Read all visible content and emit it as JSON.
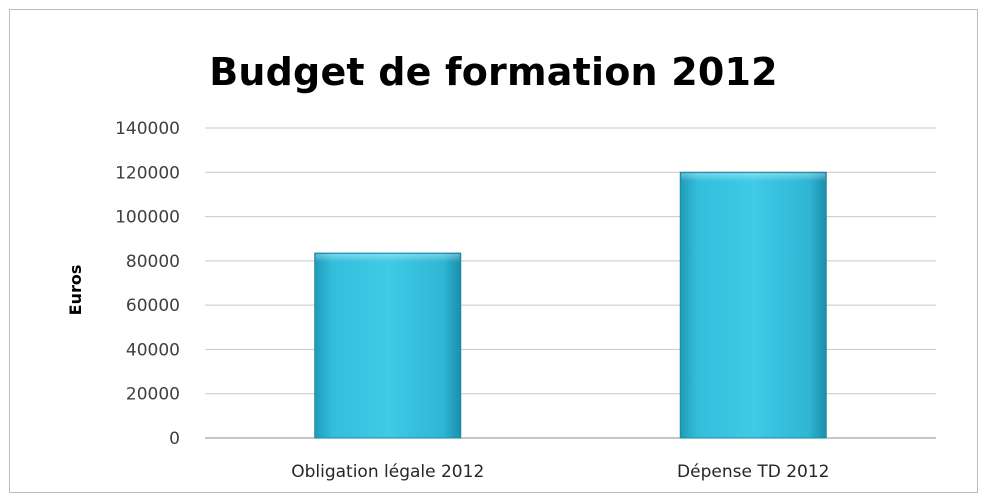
{
  "chart_data": {
    "type": "bar",
    "title": "Budget de formation 2012",
    "xlabel": "",
    "ylabel": "Euros",
    "categories": [
      "Obligation légale 2012",
      "Dépense TD 2012"
    ],
    "values": [
      83500,
      120000
    ],
    "ylim": [
      0,
      140000
    ],
    "yticks": [
      0,
      20000,
      40000,
      60000,
      80000,
      100000,
      120000,
      140000
    ],
    "grid": true,
    "legend": "none",
    "bar_color": "#2fb6d4"
  }
}
